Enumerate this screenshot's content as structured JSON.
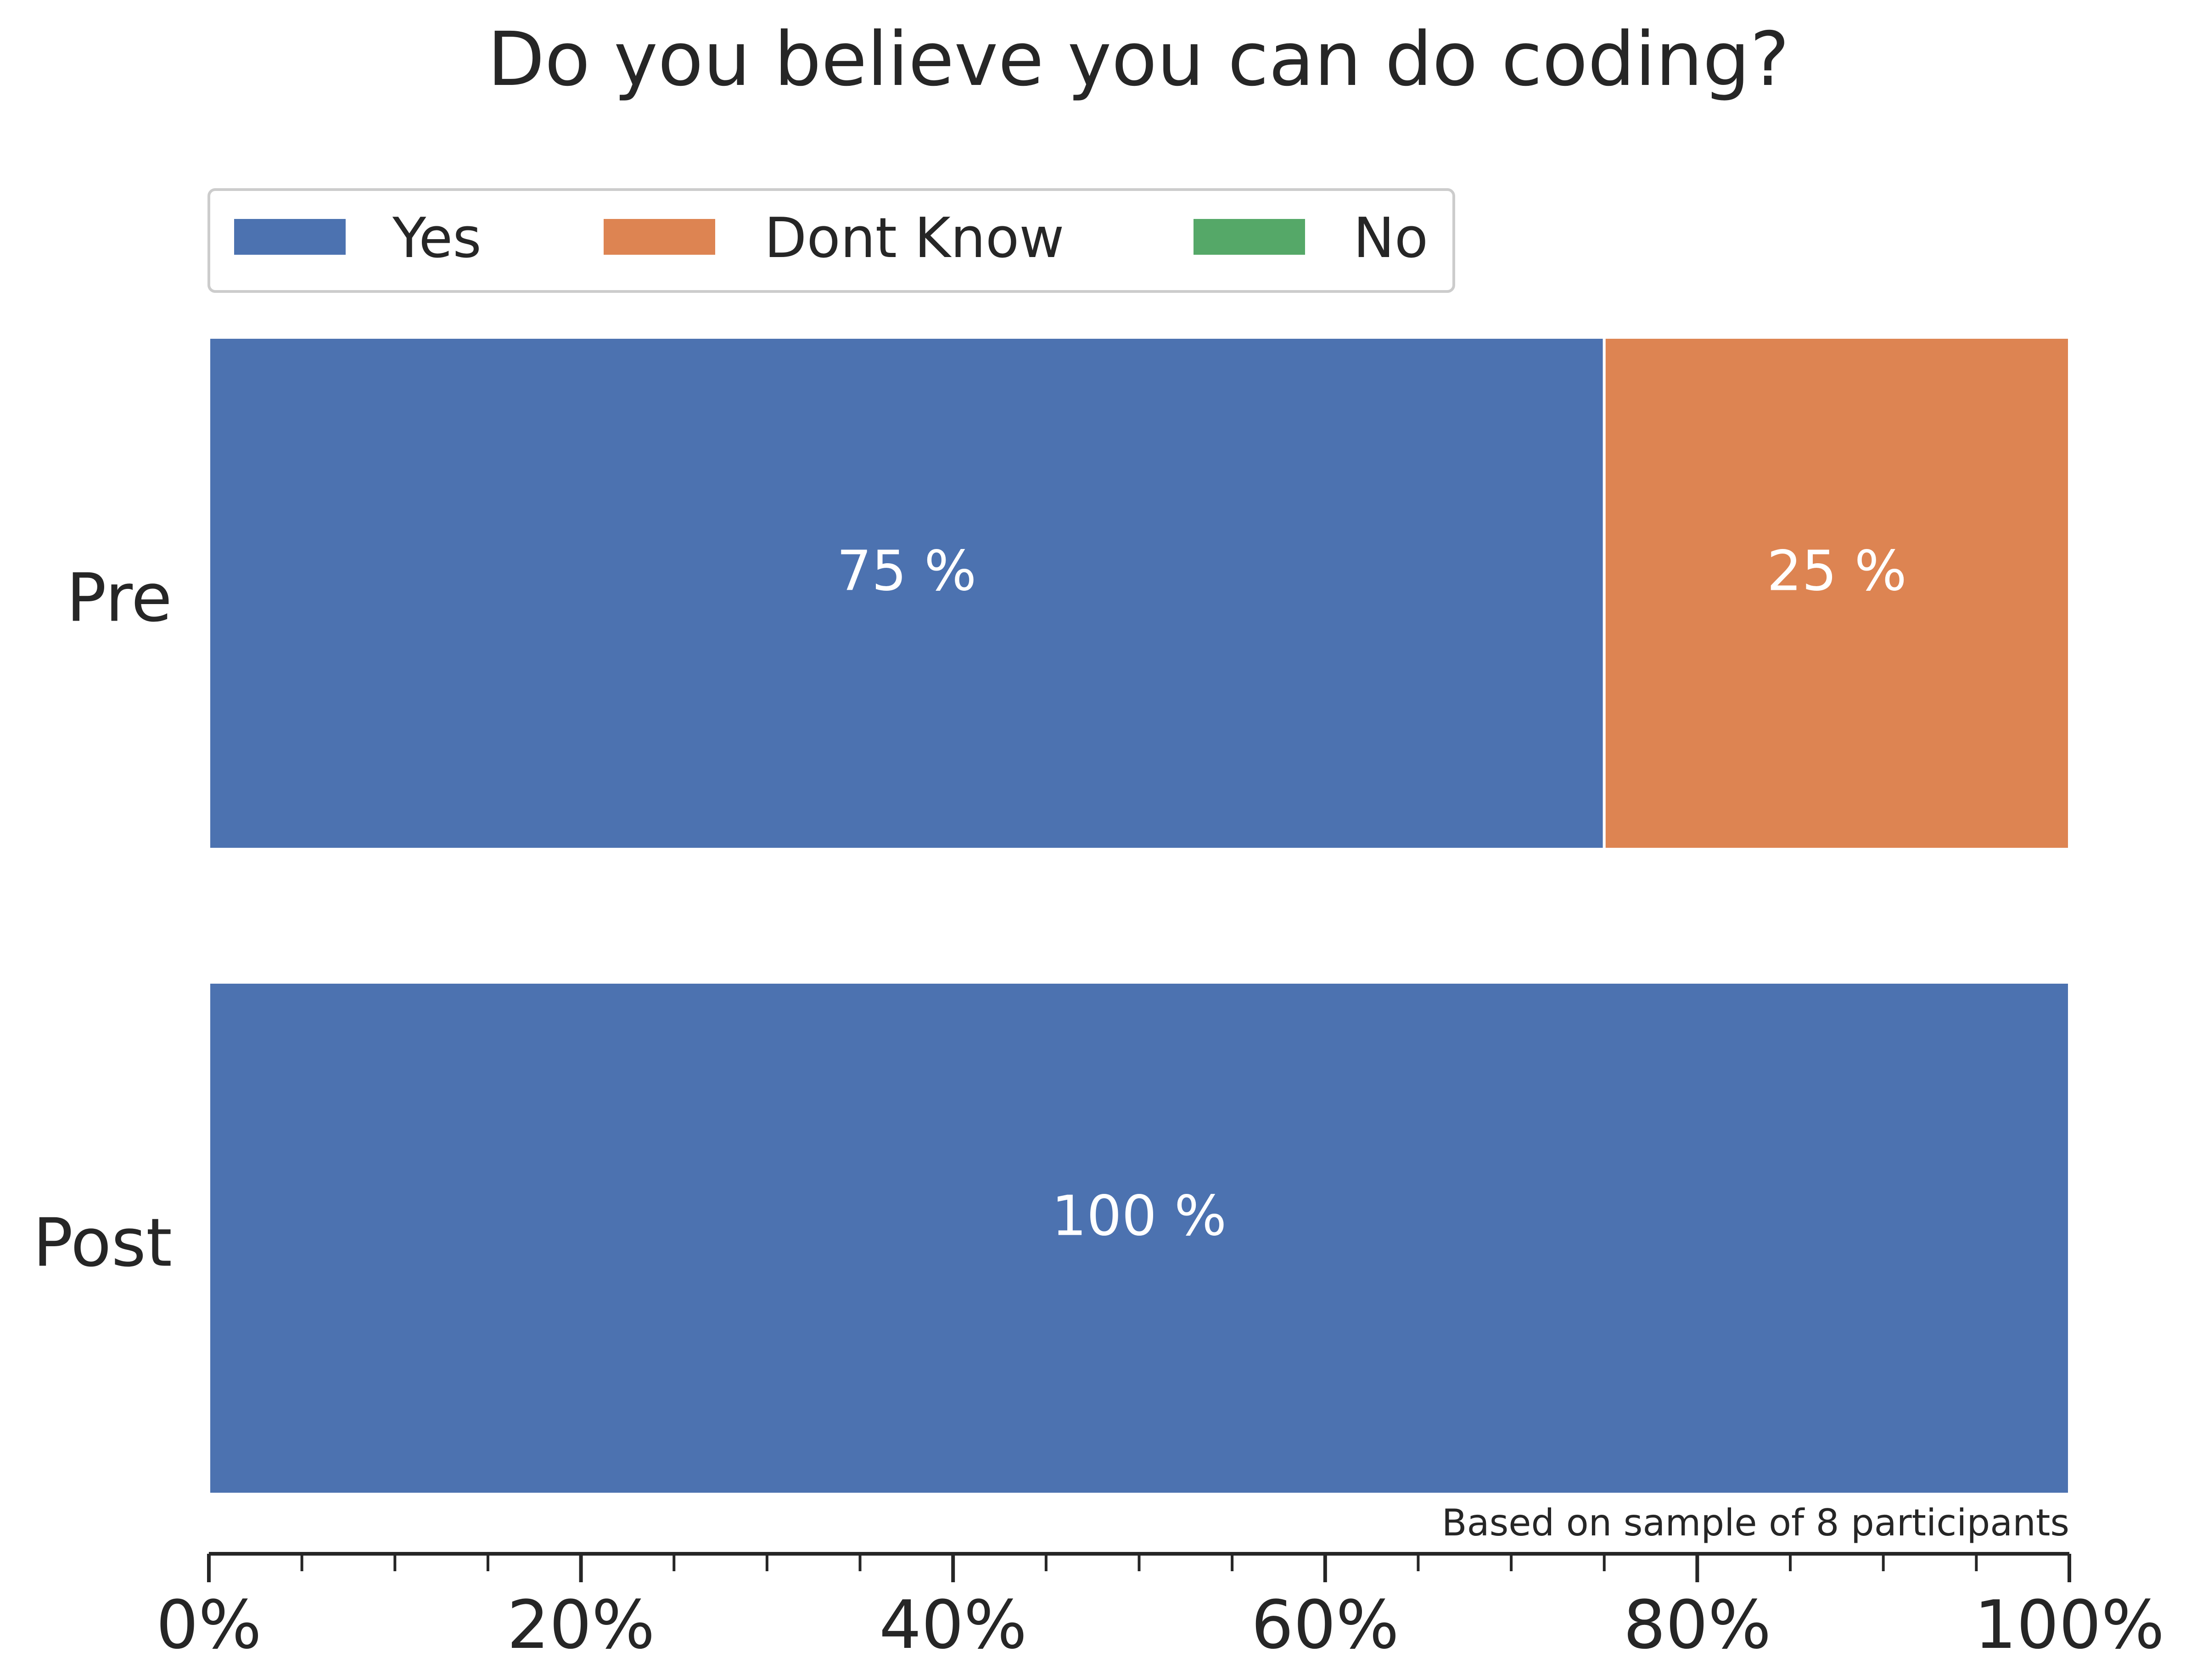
{
  "chart_data": {
    "type": "bar",
    "orientation": "horizontal",
    "stacked": true,
    "title": "Do you believe you can do coding?",
    "categories": [
      "Pre",
      "Post"
    ],
    "series": [
      {
        "name": "Yes",
        "color": "#4c72b0",
        "values": [
          75,
          100
        ],
        "labels": [
          "75 %",
          "100 %"
        ]
      },
      {
        "name": "Dont Know",
        "color": "#dd8452",
        "values": [
          25,
          0
        ],
        "labels": [
          "25 %",
          ""
        ]
      },
      {
        "name": "No",
        "color": "#55a868",
        "values": [
          0,
          0
        ],
        "labels": [
          "",
          ""
        ]
      }
    ],
    "xlim": [
      0,
      100
    ],
    "x_major_ticks": [
      0,
      20,
      40,
      60,
      80,
      100
    ],
    "x_tick_labels": [
      "0%",
      "20%",
      "40%",
      "60%",
      "80%",
      "100%"
    ],
    "x_minor_step": 5,
    "legend_position": "top-left",
    "grid": false,
    "note": "Based on sample of 8 participants"
  }
}
